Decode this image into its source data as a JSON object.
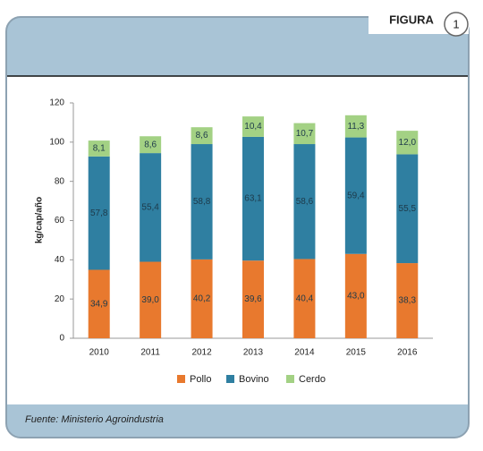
{
  "figure_label": "FIGURA",
  "figure_number": "1",
  "source": "Fuente: Ministerio Agroindustria",
  "chart_data": {
    "type": "stacked-bar",
    "ylabel": "kg/cap/año",
    "categories": [
      "2010",
      "2011",
      "2012",
      "2013",
      "2014",
      "2015",
      "2016"
    ],
    "series": [
      {
        "name": "Pollo",
        "color": "#e8792e",
        "values": [
          34.9,
          39.0,
          40.2,
          39.6,
          40.4,
          43.0,
          38.3
        ],
        "value_labels": [
          "34,9",
          "39,0",
          "40,2",
          "39,6",
          "40,4",
          "43,0",
          "38,3"
        ]
      },
      {
        "name": "Bovino",
        "color": "#2f7fa1",
        "values": [
          57.8,
          55.4,
          58.8,
          63.1,
          58.6,
          59.4,
          55.5
        ],
        "value_labels": [
          "57,8",
          "55,4",
          "58,8",
          "63,1",
          "58,6",
          "59,4",
          "55,5"
        ]
      },
      {
        "name": "Cerdo",
        "color": "#a3d184",
        "values": [
          8.1,
          8.6,
          8.6,
          10.4,
          10.7,
          11.3,
          12.0
        ],
        "value_labels": [
          "8,1",
          "8,6",
          "8,6",
          "10,4",
          "10,7",
          "11,3",
          "12,0"
        ]
      }
    ],
    "ylim": [
      0,
      120
    ],
    "yticks": [
      0,
      20,
      40,
      60,
      80,
      100,
      120
    ],
    "grid": false
  }
}
